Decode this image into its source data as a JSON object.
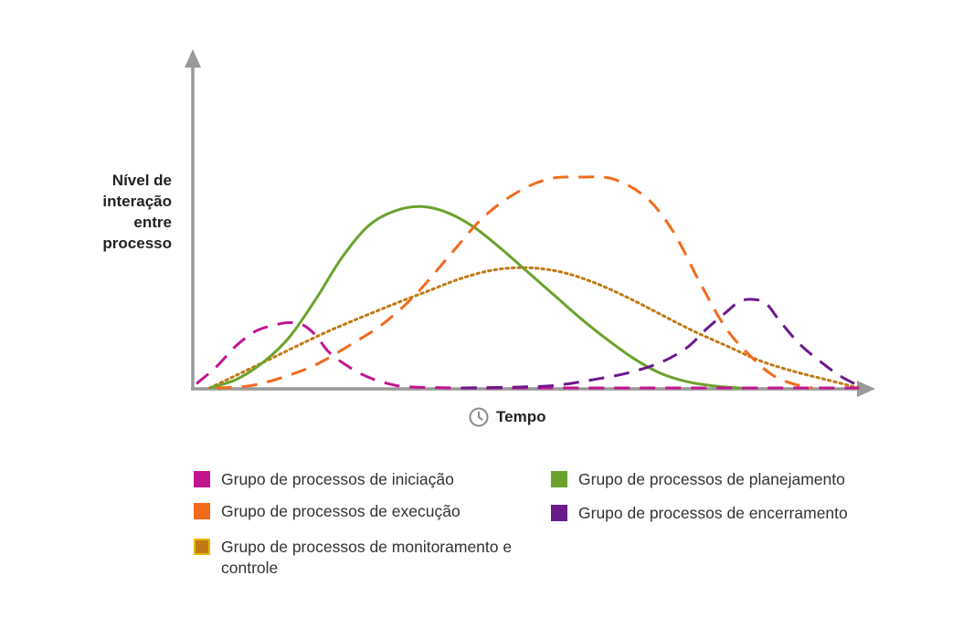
{
  "chart_data": {
    "type": "line",
    "ylabel_lines": [
      "Nível de",
      "interação",
      "entre",
      "processo"
    ],
    "xlabel": "Tempo",
    "xlim": [
      0,
      100
    ],
    "ylim": [
      0,
      100
    ],
    "grid": false,
    "legend_placement": "bottom",
    "series": [
      {
        "name": "Grupo de processos de iniciação",
        "color": "#c1168f",
        "dash": "dashed",
        "x": [
          0,
          3,
          6,
          9,
          12,
          14,
          16,
          18,
          20,
          23,
          26,
          29,
          32,
          40,
          50,
          60,
          70,
          80,
          90,
          100
        ],
        "y": [
          2,
          10,
          20,
          27,
          30,
          31,
          30,
          25,
          17,
          10,
          5,
          2,
          0.5,
          0,
          0,
          0,
          0,
          0,
          0,
          0
        ]
      },
      {
        "name": "Grupo de processos de planejamento",
        "color": "#6ba22b",
        "dash": "solid",
        "x": [
          2,
          6,
          10,
          14,
          18,
          22,
          26,
          30,
          34,
          38,
          42,
          46,
          50,
          54,
          58,
          62,
          66,
          70,
          74,
          78,
          82,
          84
        ],
        "y": [
          0,
          4,
          12,
          24,
          42,
          62,
          77,
          84,
          86,
          83,
          76,
          66,
          55,
          44,
          33,
          23,
          14,
          7,
          3,
          1,
          0,
          0
        ]
      },
      {
        "name": "Grupo de processos de execução",
        "color": "#f26b1d",
        "dash": "dashed",
        "x": [
          3,
          8,
          13,
          18,
          23,
          28,
          33,
          38,
          43,
          48,
          53,
          58,
          63,
          68,
          72,
          76,
          80,
          84,
          87,
          90,
          93
        ],
        "y": [
          0,
          1,
          5,
          11,
          20,
          30,
          44,
          62,
          80,
          92,
          99,
          100,
          99,
          90,
          74,
          50,
          28,
          14,
          6,
          2,
          0
        ]
      },
      {
        "name": "Grupo de processos de monitoramento e controle",
        "color": "#c07a15",
        "dash": "dotted",
        "x": [
          2,
          10,
          20,
          30,
          35,
          40,
          45,
          50,
          55,
          60,
          65,
          70,
          75,
          80,
          85,
          90,
          95,
          100
        ],
        "y": [
          0,
          12,
          27,
          40,
          46,
          52,
          56,
          57,
          55,
          50,
          43,
          35,
          27,
          20,
          13,
          8,
          4,
          0
        ]
      },
      {
        "name": "Grupo de processos de encerramento",
        "color": "#6b1a8c",
        "dash": "dashed",
        "x": [
          40,
          50,
          55,
          60,
          65,
          70,
          74,
          77,
          80,
          82,
          84,
          86,
          88,
          91,
          94,
          97,
          100
        ],
        "y": [
          0,
          0.5,
          1.5,
          4,
          7,
          12,
          19,
          28,
          36,
          41,
          42,
          40,
          32,
          21,
          13,
          6,
          1
        ]
      }
    ]
  }
}
